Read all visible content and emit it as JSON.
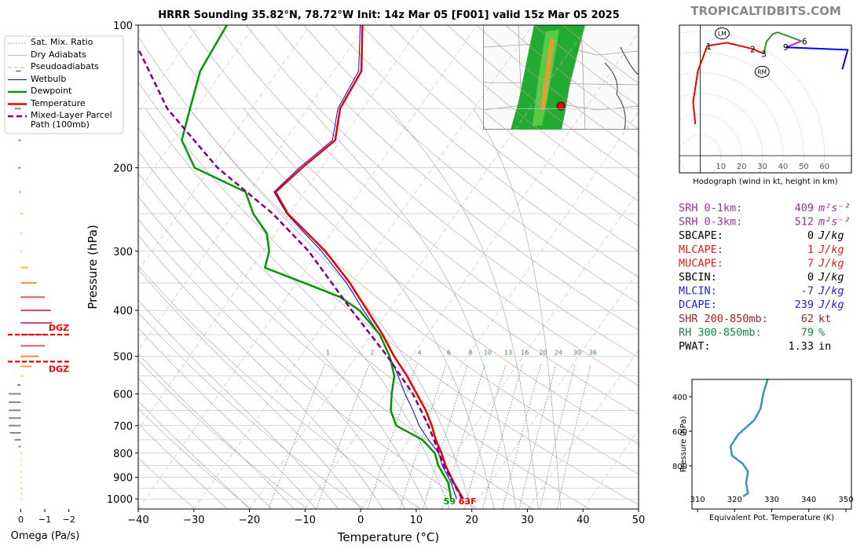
{
  "watermark": "TROPICALTIDBITS.COM",
  "chart_data": [
    {
      "type": "skewt",
      "title": "HRRR Sounding 35.82°N, 78.72°W Init: 14z Mar 05 [F001] valid 15z Mar 05 2025",
      "xlabel": "Temperature (°C)",
      "ylabel": "Pressure (hPa)",
      "xlim": [
        -40,
        50
      ],
      "ylim": [
        1050,
        100
      ],
      "log_y": true,
      "xticks": [
        {
          "value": -40,
          "label": "−40"
        },
        {
          "value": -30,
          "label": "−30"
        },
        {
          "value": -20,
          "label": "−20"
        },
        {
          "value": -10,
          "label": "−10"
        },
        0,
        10,
        20,
        30,
        40,
        50
      ],
      "yticks": [
        100,
        200,
        300,
        400,
        500,
        600,
        700,
        800,
        900,
        1000
      ],
      "yminor": [
        150,
        250,
        350,
        450,
        550,
        650,
        750,
        850,
        950
      ],
      "grid": true,
      "legend": "upper left",
      "mixing_ratios": [
        1,
        2,
        4,
        6,
        8,
        10,
        13,
        16,
        20,
        24,
        30,
        36
      ],
      "reference_lines": [
        {
          "name": "Sat. Mix. Ratio",
          "color": "#3a9a3a",
          "dash": "1.5,2"
        },
        {
          "name": "Dry Adiabats",
          "color": "#c89a9a"
        },
        {
          "name": "Pseudoadiabats",
          "color": "#9a9acc",
          "dash": "5,3"
        }
      ],
      "series": [
        {
          "name": "Wetbulb",
          "color": "#0000ee",
          "width": 1,
          "pressure": [
            1000,
            925,
            850,
            800,
            750,
            700,
            650,
            600,
            550,
            500,
            450,
            400,
            350,
            300,
            250,
            225,
            200,
            175,
            150,
            125,
            100
          ],
          "values": [
            16,
            13,
            9.2,
            7,
            3.5,
            0,
            -3,
            -6.5,
            -10,
            -14,
            -18.5,
            -24.5,
            -31,
            -39.5,
            -50.5,
            -55.5,
            -54,
            -51.5,
            -54.5,
            -55.5,
            -61
          ]
        },
        {
          "name": "Dewpoint",
          "color": "#009900",
          "width": 2.5,
          "surface_label": "59",
          "pressure": [
            1000,
            925,
            850,
            800,
            750,
            700,
            650,
            600,
            550,
            500,
            450,
            400,
            375,
            350,
            325,
            300,
            275,
            250,
            225,
            200,
            175,
            150,
            125,
            100
          ],
          "values": [
            15,
            12.5,
            8.5,
            6.3,
            2.4,
            -4.1,
            -7,
            -8.9,
            -10.7,
            -14,
            -18.5,
            -25.2,
            -30.3,
            -38.6,
            -47.6,
            -48.9,
            -51.6,
            -56.5,
            -60.6,
            -72.8,
            -78.6,
            -81.1,
            -84,
            -85
          ]
        },
        {
          "name": "Temperature",
          "color": "#ee0000",
          "width": 2.5,
          "surface_label": "63F",
          "pressure": [
            1000,
            925,
            850,
            800,
            750,
            700,
            650,
            600,
            550,
            500,
            450,
            400,
            350,
            300,
            250,
            225,
            200,
            175,
            150,
            125,
            100
          ],
          "values": [
            17.2,
            13.5,
            9.8,
            7.5,
            4.8,
            2.3,
            -0.7,
            -4.4,
            -8.4,
            -13.2,
            -18,
            -23.8,
            -30.4,
            -38.8,
            -50.3,
            -55.2,
            -53.5,
            -51,
            -54.1,
            -55,
            -60.6
          ]
        },
        {
          "name": "Mixed-Layer Parcel Path (100mb)",
          "color": "#800080",
          "width": 2.5,
          "dash": "7,4",
          "pressure": [
            1000,
            850,
            700,
            600,
            500,
            400,
            300,
            250,
            200,
            150,
            112
          ],
          "values": [
            17,
            9.5,
            1.7,
            -5.1,
            -14.4,
            -26.6,
            -41.8,
            -53,
            -68.7,
            -85.2,
            -98
          ]
        }
      ]
    },
    {
      "type": "bar",
      "orientation": "horizontal",
      "xlabel": "Omega (Pa/s)",
      "xlim": [
        0.7,
        -2.4
      ],
      "ylim": [
        1050,
        100
      ],
      "log_y": true,
      "xticks": [
        0,
        {
          "value": -1,
          "label": "−1"
        },
        {
          "value": -2,
          "label": "−2"
        }
      ],
      "levels": [
        125,
        150,
        175,
        200,
        225,
        250,
        275,
        300,
        325,
        350,
        375,
        400,
        425,
        450,
        475,
        500,
        525,
        550,
        575,
        600,
        625,
        650,
        675,
        700,
        725,
        750,
        775,
        800,
        825,
        850,
        875,
        900,
        925,
        950,
        975,
        1000
      ],
      "values": [
        0.2,
        0.25,
        0.1,
        0.1,
        0.05,
        -0.07,
        -0.05,
        -0.05,
        -0.3,
        -0.65,
        -1.0,
        -1.25,
        -1.3,
        -1.1,
        -1.0,
        -0.75,
        -0.45,
        -0.1,
        0.15,
        0.5,
        0.5,
        0.5,
        0.5,
        0.5,
        0.45,
        0.25,
        0.1,
        -0.05,
        -0.03,
        -0.03,
        -0.04,
        -0.05,
        -0.05,
        -0.06,
        -0.05,
        -0.04
      ],
      "colors": [
        "#888888",
        "#888888",
        "#888888",
        "#888888",
        "#888888",
        "#f5d020",
        "#f5d020",
        "#f5d020",
        "#f5c030",
        "#f08c40",
        "#e06060",
        "#cc4477",
        "#cc4477",
        "#cc4477",
        "#e06060",
        "#f08c40",
        "#f5a030",
        "#f5d020",
        "#888888",
        "#888888",
        "#888888",
        "#888888",
        "#888888",
        "#888888",
        "#888888",
        "#888888",
        "#888888",
        "#f5d020",
        "#f5d020",
        "#f5d020",
        "#f5d020",
        "#f5d020",
        "#f5d020",
        "#f5d020",
        "#f5d020",
        "#f5d020"
      ],
      "annotations": [
        {
          "text": "DGZ",
          "y": 450,
          "color": "#ee0000"
        },
        {
          "text": "DGZ",
          "y": 513,
          "color": "#ee0000"
        }
      ]
    },
    {
      "type": "hodograph",
      "xlabel": "Hodograph (wind in kt, height in km)",
      "xlim": [
        -10,
        73
      ],
      "ylim": [
        -8.3,
        63
      ],
      "xticks": [
        10,
        20,
        30,
        40,
        50,
        60
      ],
      "series": [
        {
          "color": "#ee0000",
          "x": [
            -2.3,
            -3.4,
            -1.1,
            3.4,
            12.9,
            25.4,
            30.7
          ],
          "values": [
            15.2,
            25.8,
            40.9,
            53,
            54.5,
            51.5,
            49.2
          ]
        },
        {
          "color": "#2a9a2a",
          "x": [
            30.7,
            32,
            35,
            37.5,
            48.9
          ],
          "values": [
            49.2,
            55,
            58.7,
            59.5,
            55.3
          ]
        },
        {
          "color": "#cc22cc",
          "x": [
            48.9,
            41.3
          ],
          "values": [
            55.3,
            52.3
          ]
        },
        {
          "color": "#0000ee",
          "x": [
            41.3,
            71.2,
            68.6
          ],
          "values": [
            52.3,
            51.1,
            41.7
          ]
        }
      ],
      "height_labels": [
        {
          "label": "1",
          "x": 4.2,
          "y": 52.7
        },
        {
          "label": "2",
          "x": 25.4,
          "y": 51.5
        },
        {
          "label": "3",
          "x": 30.7,
          "y": 49.2
        },
        {
          "label": "6",
          "x": 50.4,
          "y": 55.3
        },
        {
          "label": "9",
          "x": 41.3,
          "y": 52.3
        }
      ],
      "storm_motions": [
        {
          "label": "LM",
          "x": 10.6,
          "y": 59
        },
        {
          "label": "RM",
          "x": 29.9,
          "y": 40.5
        }
      ]
    },
    {
      "type": "profile",
      "xlabel": "Equivalent Pot. Temperature (K)",
      "ylabel": "Pressure (hPa)",
      "xlim": [
        308.5,
        351.5
      ],
      "ylim": [
        1050,
        300
      ],
      "xticks": [
        310,
        320,
        330,
        340,
        350
      ],
      "yticks": [
        400,
        600,
        800
      ],
      "series": [
        {
          "color": "#3399aa",
          "pressure": [
            300,
            377,
            468,
            536,
            618,
            686,
            741,
            786,
            832,
            900,
            959,
            977
          ],
          "values": [
            328.9,
            327.8,
            327,
            325.3,
            321,
            318.9,
            319.3,
            322.1,
            323.6,
            323.1,
            323.6,
            322.3
          ]
        }
      ]
    }
  ],
  "indices": [
    {
      "label": "SRH 0-1km:",
      "value": 409,
      "unit": "m²s⁻²",
      "color": "#993399"
    },
    {
      "label": "SRH 0-3km:",
      "value": 512,
      "unit": "m²s⁻²",
      "color": "#993399"
    },
    {
      "label": "SBCAPE:",
      "value": 0,
      "unit": "J/kg",
      "color": "#000000"
    },
    {
      "label": "MLCAPE:",
      "value": 1,
      "unit": "J/kg",
      "color": "#dd2222"
    },
    {
      "label": "MUCAPE:",
      "value": 7,
      "unit": "J/kg",
      "color": "#dd2222"
    },
    {
      "label": "SBCIN:",
      "value": 0,
      "unit": "J/kg",
      "color": "#000000"
    },
    {
      "label": "MLCIN:",
      "value": -7,
      "unit": "J/kg",
      "color": "#2222cc"
    },
    {
      "label": "DCAPE:",
      "value": 239,
      "unit": "J/kg",
      "color": "#2222cc"
    },
    {
      "label": "SHR 200-850mb:",
      "value": 62,
      "unit": "kt",
      "color": "#aa2222"
    },
    {
      "label": "RH 300-850mb:",
      "value": 79,
      "unit": "%",
      "color": "#118844"
    },
    {
      "label": "PWAT:",
      "value": 1.33,
      "unit": "in",
      "color": "#000000"
    }
  ]
}
